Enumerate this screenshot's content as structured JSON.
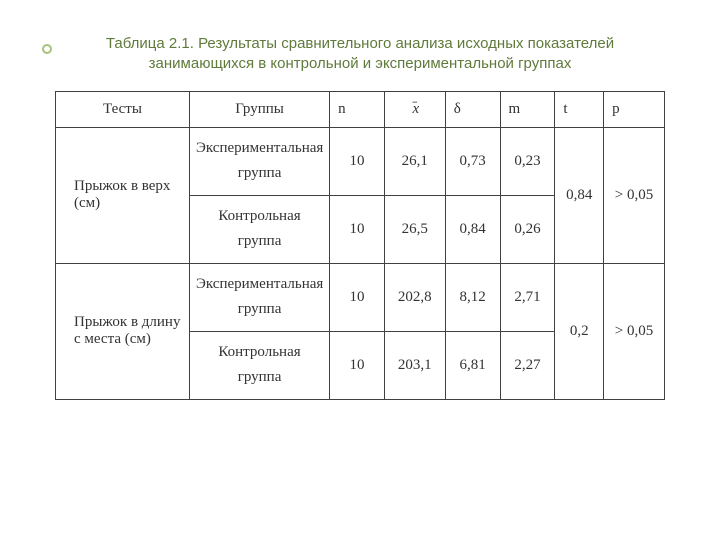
{
  "title_line1": "Таблица 2.1. Результаты сравнительного анализа исходных показателей",
  "title_line2": "занимающихся в контрольной и экспериментальной группах",
  "colors": {
    "title_color": "#5f7a3a",
    "bullet_border": "#a8c27a",
    "border_color": "#404040",
    "background": "#ffffff",
    "text_color": "#333333"
  },
  "typography": {
    "title_fontfamily": "Arial",
    "title_fontsize": 15,
    "body_fontfamily": "Times New Roman",
    "body_fontsize": 15
  },
  "table": {
    "type": "table",
    "columns_widths_pct": [
      22,
      23,
      9,
      10,
      9,
      9,
      8,
      10
    ],
    "headers": {
      "tests": "Тесты",
      "groups": "Группы",
      "n": "n",
      "xbar": "x",
      "delta": "δ",
      "m": "m",
      "t": "t",
      "p": "p"
    },
    "rows": [
      {
        "test": "Прыжок в верх (см)",
        "exp_group": "Экспериментальная группа",
        "ctrl_group": "Контрольная группа",
        "exp": {
          "n": "10",
          "x": "26,1",
          "d": "0,73",
          "m": "0,23"
        },
        "ctrl": {
          "n": "10",
          "x": "26,5",
          "d": "0,84",
          "m": "0,26"
        },
        "t": "0,84",
        "p": "> 0,05"
      },
      {
        "test": "Прыжок в длину с места (см)",
        "exp_group": "Экспериментальная группа",
        "ctrl_group": "Контрольная группа",
        "exp": {
          "n": "10",
          "x": "202,8",
          "d": "8,12",
          "m": "2,71"
        },
        "ctrl": {
          "n": "10",
          "x": "203,1",
          "d": "6,81",
          "m": "2,27"
        },
        "t": "0,2",
        "p": "> 0,05"
      }
    ]
  }
}
